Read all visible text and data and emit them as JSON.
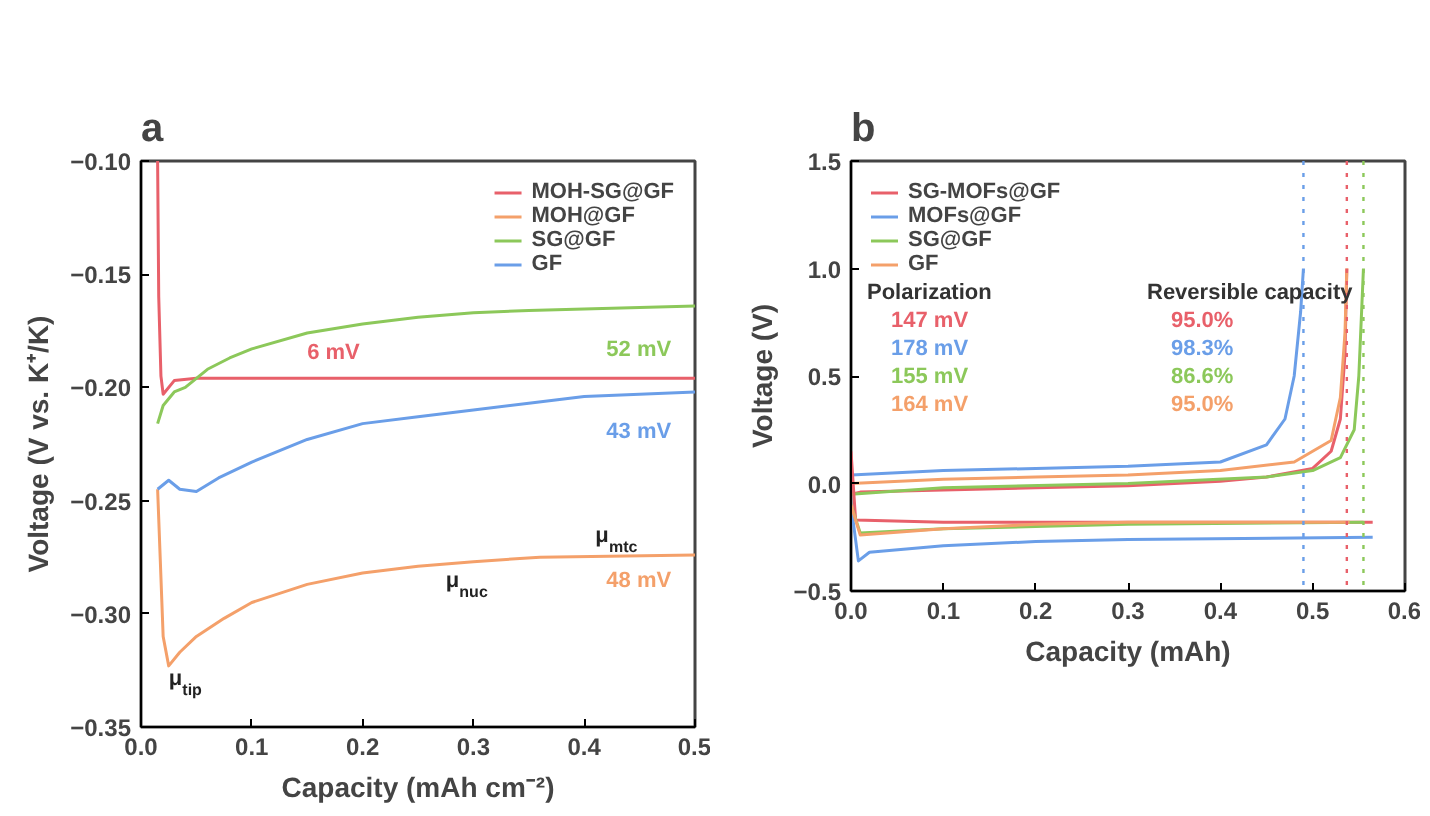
{
  "chart_data": [
    {
      "type": "line",
      "title": "a",
      "xlabel": "Capacity (mAh cm⁻²)",
      "ylabel": "Voltage (V vs. K⁺/K)",
      "xlim": [
        0,
        0.5
      ],
      "ylim": [
        -0.35,
        -0.1
      ],
      "xticks": [
        {
          "value": 0,
          "label": "0.0"
        },
        0.1,
        0.2,
        0.3,
        0.4,
        0.5
      ],
      "yticks": [
        {
          "value": -0.35,
          "label": "−0.35"
        },
        {
          "value": -0.3,
          "label": "−0.30"
        },
        {
          "value": -0.25,
          "label": "−0.25"
        },
        {
          "value": -0.2,
          "label": "−0.20"
        },
        {
          "value": -0.15,
          "label": "−0.15"
        },
        {
          "value": -0.1,
          "label": "−0.10"
        }
      ],
      "legend": "top right",
      "grid": false,
      "series": [
        {
          "name": "MOH-SG@GF",
          "color": "#e8606a",
          "x": [
            0.015,
            0.016,
            0.018,
            0.02,
            0.03,
            0.05,
            0.1,
            0.2,
            0.3,
            0.4,
            0.5
          ],
          "values": [
            -0.1,
            -0.16,
            -0.195,
            -0.203,
            -0.197,
            -0.196,
            -0.196,
            -0.196,
            -0.196,
            -0.196,
            -0.196
          ]
        },
        {
          "name": "MOH@GF",
          "color": "#f4a06a",
          "x": [
            0.015,
            0.02,
            0.025,
            0.035,
            0.05,
            0.075,
            0.1,
            0.15,
            0.2,
            0.25,
            0.3,
            0.36,
            0.5
          ],
          "values": [
            -0.245,
            -0.31,
            -0.323,
            -0.317,
            -0.31,
            -0.302,
            -0.295,
            -0.287,
            -0.282,
            -0.279,
            -0.277,
            -0.275,
            -0.274
          ]
        },
        {
          "name": "SG@GF",
          "color": "#8cc85a",
          "x": [
            0.015,
            0.02,
            0.03,
            0.04,
            0.06,
            0.08,
            0.1,
            0.15,
            0.2,
            0.25,
            0.3,
            0.35,
            0.5
          ],
          "values": [
            -0.216,
            -0.208,
            -0.202,
            -0.2,
            -0.192,
            -0.187,
            -0.183,
            -0.176,
            -0.172,
            -0.169,
            -0.167,
            -0.166,
            -0.164
          ]
        },
        {
          "name": "GF",
          "color": "#6a9ee8",
          "x": [
            0.015,
            0.025,
            0.035,
            0.05,
            0.07,
            0.1,
            0.15,
            0.2,
            0.25,
            0.3,
            0.35,
            0.4,
            0.5
          ],
          "values": [
            -0.245,
            -0.241,
            -0.245,
            -0.246,
            -0.24,
            -0.233,
            -0.223,
            -0.216,
            -0.213,
            -0.21,
            -0.207,
            -0.204,
            -0.202
          ]
        }
      ],
      "annotations": [
        "6 mV",
        "52 mV",
        "43 mV",
        "48 mV",
        "μ$_{mtc}$",
        "μ$_{nuc}$",
        "μ$_{tip}$"
      ]
    },
    {
      "type": "line",
      "title": "b",
      "xlabel": "Capacity (mAh)",
      "ylabel": "Voltage (V)",
      "xlim": [
        0,
        0.6
      ],
      "ylim": [
        -0.5,
        1.5
      ],
      "xticks": [
        {
          "value": 0,
          "label": "0.0"
        },
        0.1,
        0.2,
        0.3,
        0.4,
        0.5,
        0.6
      ],
      "yticks": [
        {
          "value": -0.5,
          "label": "−0.5"
        },
        {
          "value": 0,
          "label": "0.0"
        },
        0.5,
        {
          "value": 1,
          "label": "1.0"
        },
        1.5
      ],
      "legend": "top left",
      "grid": false,
      "series": [
        {
          "name": "SG-MOFs@GF",
          "color": "#e8606a",
          "x": [
            0,
            0.01,
            0.1,
            0.2,
            0.3,
            0.4,
            0.45,
            0.5,
            0.52,
            0.53,
            0.535,
            0.537
          ],
          "values": [
            -0.05,
            -0.04,
            -0.03,
            -0.02,
            -0.01,
            0.01,
            0.03,
            0.07,
            0.15,
            0.3,
            0.6,
            1.0
          ]
        },
        {
          "name": "MOFs@GF",
          "color": "#6a9ee8",
          "x": [
            0,
            0.1,
            0.2,
            0.3,
            0.4,
            0.45,
            0.47,
            0.48,
            0.487,
            0.49
          ],
          "values": [
            0.04,
            0.06,
            0.07,
            0.08,
            0.1,
            0.18,
            0.3,
            0.5,
            0.8,
            1.0
          ]
        },
        {
          "name": "SG@GF",
          "color": "#8cc85a",
          "x": [
            0,
            0.1,
            0.3,
            0.45,
            0.5,
            0.53,
            0.545,
            0.55,
            0.555
          ],
          "values": [
            -0.05,
            -0.02,
            0.0,
            0.03,
            0.06,
            0.12,
            0.25,
            0.5,
            1.0
          ]
        },
        {
          "name": "GF",
          "color": "#f4a06a",
          "x": [
            0,
            0.1,
            0.2,
            0.3,
            0.4,
            0.48,
            0.52,
            0.53,
            0.535,
            0.537
          ],
          "values": [
            0.0,
            0.02,
            0.03,
            0.04,
            0.06,
            0.1,
            0.2,
            0.4,
            0.7,
            1.0
          ]
        },
        {
          "color": "#e8606a",
          "x": [
            0,
            0.005,
            0.1,
            0.3,
            0.565
          ],
          "values": [
            0.15,
            -0.17,
            -0.18,
            -0.18,
            -0.18
          ]
        },
        {
          "color": "#6a9ee8",
          "x": [
            0,
            0.008,
            0.02,
            0.1,
            0.2,
            0.3,
            0.565
          ],
          "values": [
            -0.1,
            -0.36,
            -0.32,
            -0.29,
            -0.27,
            -0.26,
            -0.25
          ]
        },
        {
          "color": "#8cc85a",
          "x": [
            0,
            0.01,
            0.1,
            0.2,
            0.3,
            0.555
          ],
          "values": [
            -0.1,
            -0.23,
            -0.21,
            -0.2,
            -0.19,
            -0.18
          ]
        },
        {
          "color": "#f4a06a",
          "x": [
            0,
            0.01,
            0.1,
            0.2,
            0.3,
            0.54
          ],
          "values": [
            -0.1,
            -0.24,
            -0.21,
            -0.19,
            -0.18,
            -0.18
          ]
        }
      ],
      "ref_lines": [
        {
          "axis": "x",
          "value": 0.49,
          "color": "#6a9ee8",
          "line_style": "dotted"
        },
        {
          "axis": "x",
          "value": 0.537,
          "color": "#e8606a",
          "line_style": "dotted"
        },
        {
          "axis": "x",
          "value": 0.555,
          "color": "#8cc85a",
          "line_style": "dotted"
        }
      ],
      "annotations": [
        "Polarization",
        "147 mV",
        "178 mV",
        "155 mV",
        "164 mV",
        "Reversible capacity",
        "95.0%",
        "98.3%",
        "86.6%",
        "95.0%"
      ]
    }
  ]
}
